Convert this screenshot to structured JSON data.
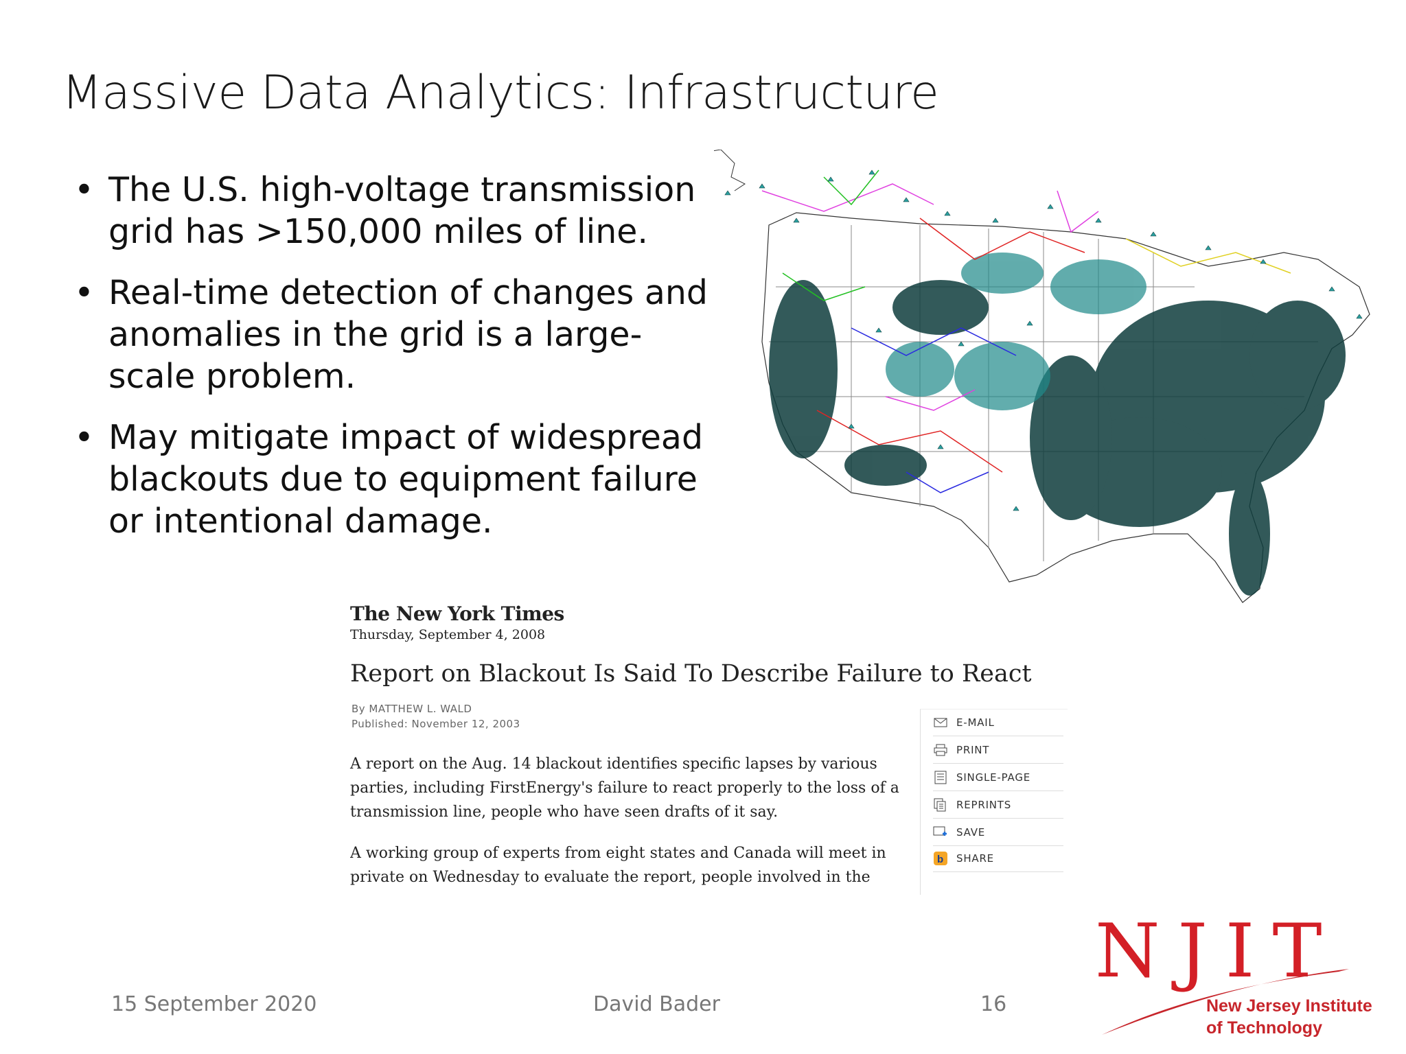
{
  "slide": {
    "title": "Massive Data Analytics: Infrastructure",
    "bullets": [
      {
        "marker": "•",
        "text": "The U.S. high-voltage transmission grid has >150,000 miles of line."
      },
      {
        "marker": "•",
        "text": "Real-time detection of changes and anomalies in the grid is a large-scale problem."
      },
      {
        "marker": "•",
        "text": "May mitigate impact of widespread blackouts due to equipment failure or intentional damage."
      }
    ]
  },
  "article": {
    "masthead": "The New York Times",
    "date": "Thursday, September 4, 2008",
    "headline": "Report on Blackout Is Said To Describe Failure to React",
    "byline": "By MATTHEW L. WALD",
    "published": "Published: November 12, 2003",
    "paragraphs": [
      "A report on the Aug. 14 blackout identifies specific lapses by various parties, including FirstEnergy's failure to react properly to the loss of a transmission line, people who have seen drafts of it say.",
      "A working group of experts from eight states and Canada will meet in private on Wednesday to evaluate the report, people involved in the investigation said Tuesday. The report, which the Energy Department"
    ],
    "tools": [
      {
        "label": "E-MAIL",
        "icon": "envelope-icon"
      },
      {
        "label": "PRINT",
        "icon": "printer-icon"
      },
      {
        "label": "SINGLE-PAGE",
        "icon": "page-icon"
      },
      {
        "label": "REPRINTS",
        "icon": "reprints-icon"
      },
      {
        "label": "SAVE",
        "icon": "save-icon"
      },
      {
        "label": "SHARE",
        "icon": "share-icon"
      }
    ]
  },
  "footer": {
    "date": "15 September 2020",
    "author": "David Bader",
    "page": "16"
  },
  "logo": {
    "letters": "NJIT",
    "name_line1": "New Jersey Institute",
    "name_line2": "of Technology",
    "color": "#d31f26"
  },
  "map": {
    "description_icon": "us-power-grid-map",
    "colors": {
      "node": "#1f8a8a",
      "dense": "#0f3d3d",
      "line_red": "#e02424",
      "line_magenta": "#e040e0",
      "line_blue": "#2a2ae0",
      "line_green": "#22c022",
      "line_yellow": "#e0d020"
    }
  }
}
